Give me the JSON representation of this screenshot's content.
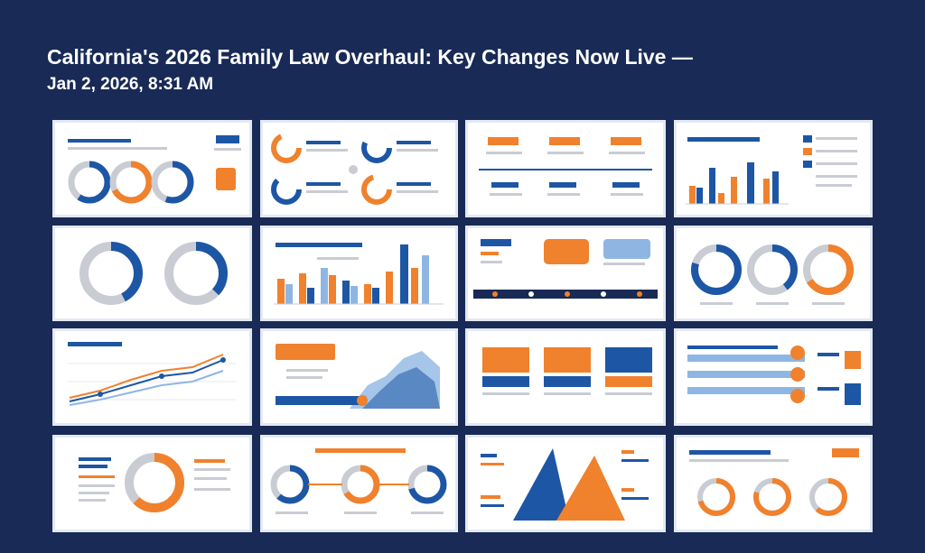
{
  "header": {
    "title": "California's 2026 Family Law Overhaul: Key Changes Now Live —",
    "timestamp": "Jan 2, 2026, 8:31 AM"
  },
  "colors": {
    "background": "#182a55",
    "blue": "#1d56a4",
    "orange": "#f0812d",
    "light_blue": "#8fb6e3",
    "gray": "#c9ccd3"
  },
  "thumbnails": [
    {
      "id": "r1c1",
      "kind": "donut-row"
    },
    {
      "id": "r1c2",
      "kind": "icon-grid"
    },
    {
      "id": "r1c3",
      "kind": "timeline"
    },
    {
      "id": "r1c4",
      "kind": "bar-chart"
    },
    {
      "id": "r2c1",
      "kind": "donut-pair"
    },
    {
      "id": "r2c2",
      "kind": "bar-chart"
    },
    {
      "id": "r2c3",
      "kind": "timeline"
    },
    {
      "id": "r2c4",
      "kind": "donut-row"
    },
    {
      "id": "r3c1",
      "kind": "line-chart"
    },
    {
      "id": "r3c2",
      "kind": "area-chart"
    },
    {
      "id": "r3c3",
      "kind": "card-blocks"
    },
    {
      "id": "r3c4",
      "kind": "progress-bars"
    },
    {
      "id": "r4c1",
      "kind": "donut-single"
    },
    {
      "id": "r4c2",
      "kind": "donut-row"
    },
    {
      "id": "r4c3",
      "kind": "triangles"
    },
    {
      "id": "r4c4",
      "kind": "donut-row"
    }
  ]
}
